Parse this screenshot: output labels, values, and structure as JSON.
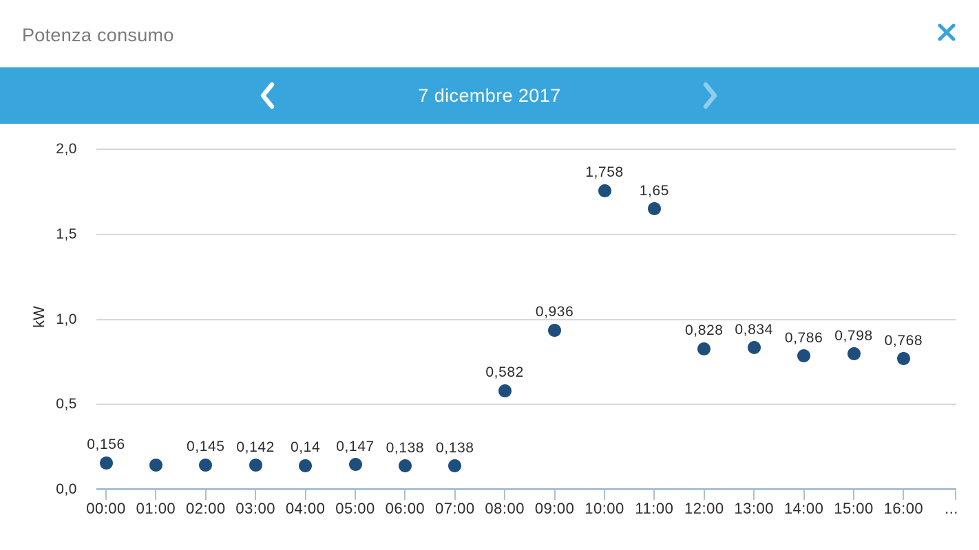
{
  "header": {
    "title": "Potenza consumo",
    "close_icon": "x-icon"
  },
  "date_nav": {
    "prev_icon": "chevron-left",
    "next_icon": "chevron-right",
    "date_label": "7 dicembre 2017"
  },
  "chart_data": {
    "type": "scatter",
    "title": "Potenza consumo",
    "xlabel": "",
    "ylabel": "kW",
    "ylim": [
      0,
      2.0
    ],
    "y_tick_labels": [
      "0,0",
      "0,5",
      "1,0",
      "1,5",
      "2,0"
    ],
    "x_overflow_label": "...",
    "grid": true,
    "legend": false,
    "points": [
      {
        "time": "00:00",
        "value": 0.156,
        "label": "0,156"
      },
      {
        "time": "01:00",
        "value": 0.145,
        "label": ""
      },
      {
        "time": "02:00",
        "value": 0.145,
        "label": "0,145"
      },
      {
        "time": "03:00",
        "value": 0.142,
        "label": "0,142"
      },
      {
        "time": "04:00",
        "value": 0.14,
        "label": "0,14"
      },
      {
        "time": "05:00",
        "value": 0.147,
        "label": "0,147"
      },
      {
        "time": "06:00",
        "value": 0.138,
        "label": "0,138"
      },
      {
        "time": "07:00",
        "value": 0.138,
        "label": "0,138"
      },
      {
        "time": "08:00",
        "value": 0.582,
        "label": "0,582"
      },
      {
        "time": "09:00",
        "value": 0.936,
        "label": "0,936"
      },
      {
        "time": "10:00",
        "value": 1.758,
        "label": "1,758"
      },
      {
        "time": "11:00",
        "value": 1.65,
        "label": "1,65"
      },
      {
        "time": "12:00",
        "value": 0.828,
        "label": "0,828"
      },
      {
        "time": "13:00",
        "value": 0.834,
        "label": "0,834"
      },
      {
        "time": "14:00",
        "value": 0.786,
        "label": "0,786"
      },
      {
        "time": "15:00",
        "value": 0.798,
        "label": "0,798"
      },
      {
        "time": "16:00",
        "value": 0.768,
        "label": "0,768"
      }
    ],
    "colors": {
      "accent_blue": "#38a6dd",
      "close_blue": "#35a4dc",
      "dot_navy": "#1e4e7c",
      "axis_blue": "#a7c0dc",
      "grid_gray": "#d8d8d8",
      "label_dark": "#2d2d2d",
      "title_gray": "#7a7a7a"
    }
  }
}
